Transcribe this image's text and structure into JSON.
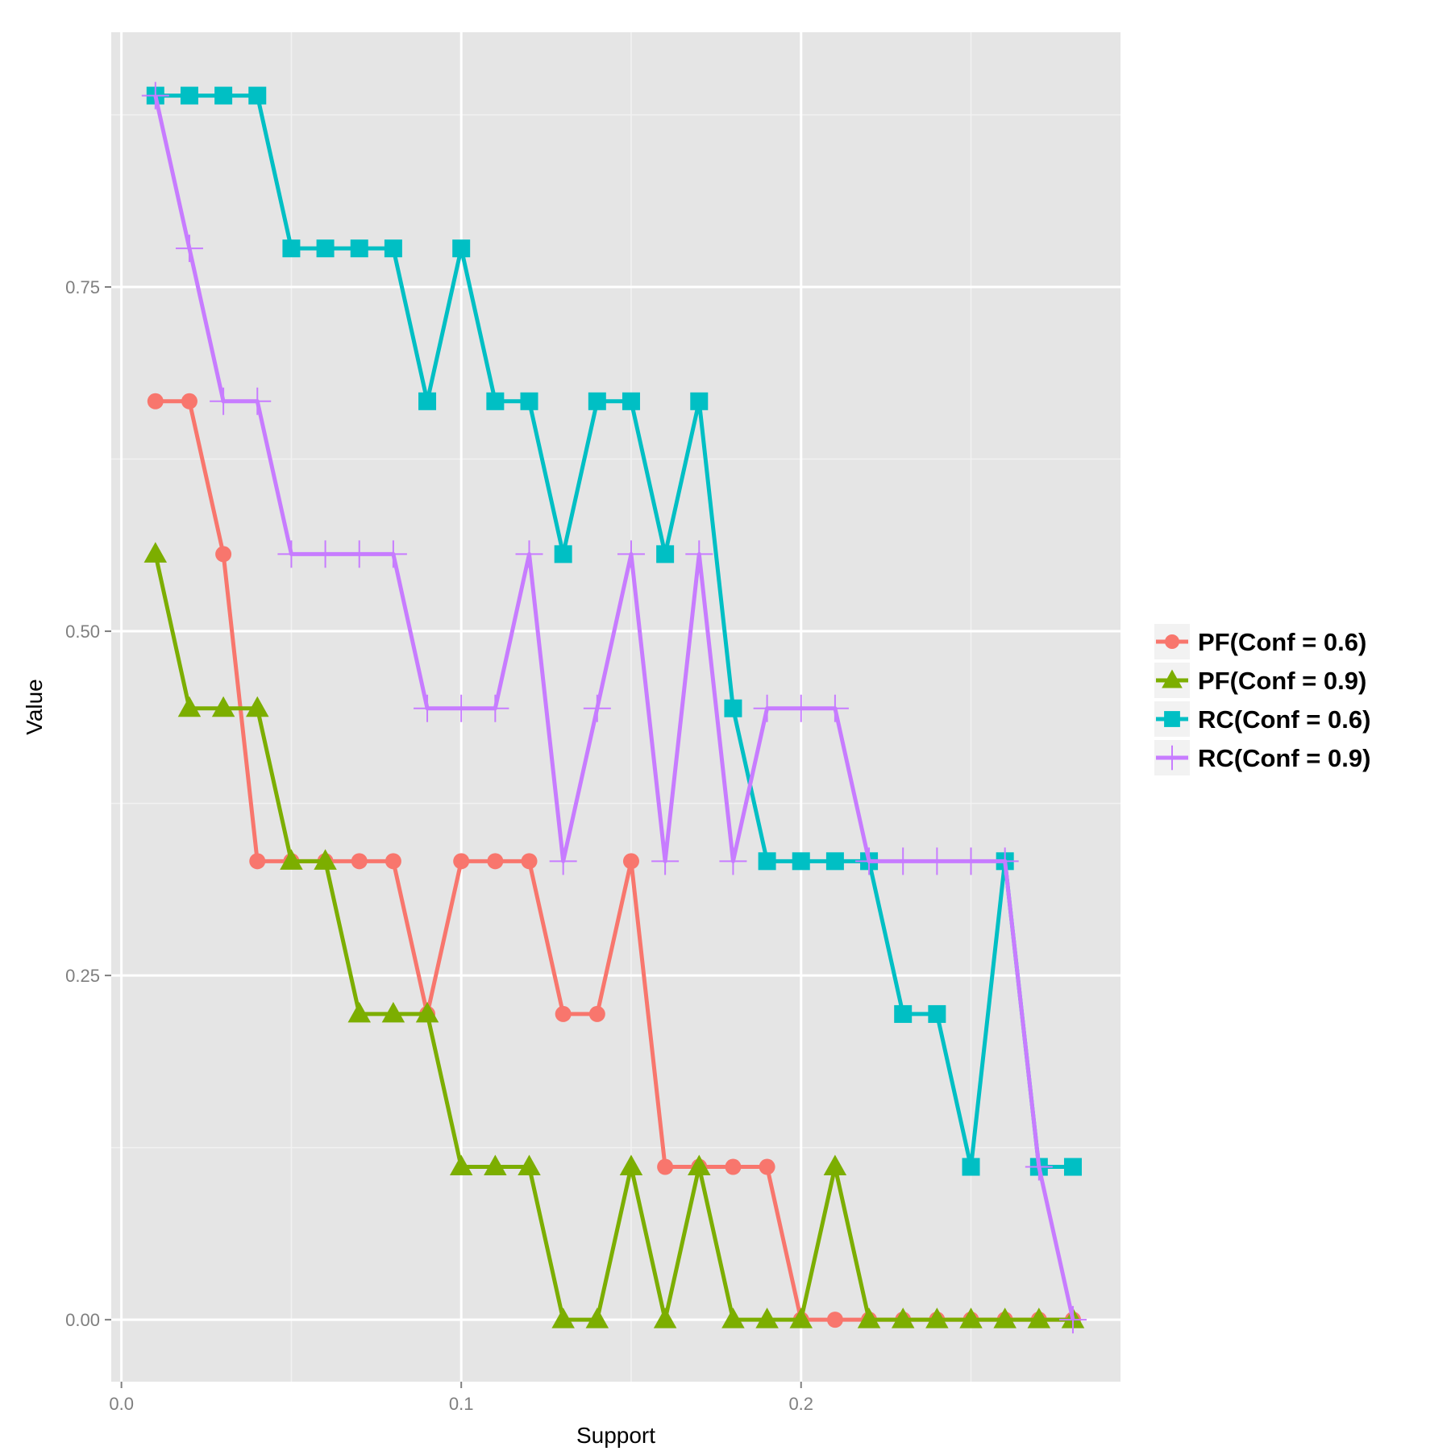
{
  "chart_data": {
    "type": "line",
    "xlabel": "Support",
    "ylabel": "Value",
    "xlim": [
      -0.003,
      0.294
    ],
    "ylim": [
      -0.045,
      0.935
    ],
    "x_ticks": [
      0.0,
      0.1,
      0.2
    ],
    "x_tick_labels": [
      "0.0",
      "0.1",
      "0.2"
    ],
    "y_ticks": [
      0.0,
      0.25,
      0.5,
      0.75
    ],
    "y_tick_labels": [
      "0.00",
      "0.25",
      "0.50",
      "0.75"
    ],
    "grid": true,
    "legend_position": "right",
    "x": [
      0.01,
      0.02,
      0.03,
      0.04,
      0.05,
      0.06,
      0.07,
      0.08,
      0.09,
      0.1,
      0.11,
      0.12,
      0.13,
      0.14,
      0.15,
      0.16,
      0.17,
      0.18,
      0.19,
      0.2,
      0.21,
      0.22,
      0.23,
      0.24,
      0.25,
      0.26,
      0.27,
      0.28
    ],
    "series": [
      {
        "name": "PF(Conf = 0.6)",
        "color": "#F8766D",
        "marker": "circle",
        "values": [
          0.667,
          0.667,
          0.556,
          0.333,
          0.333,
          0.333,
          0.333,
          0.333,
          0.222,
          0.333,
          0.333,
          0.333,
          0.222,
          0.222,
          0.333,
          0.111,
          0.111,
          0.111,
          0.111,
          0.0,
          0.0,
          0.0,
          0.0,
          0.0,
          0.0,
          0.0,
          0.0,
          0.0
        ]
      },
      {
        "name": "PF(Conf = 0.9)",
        "color": "#7CAE00",
        "marker": "triangle",
        "values": [
          0.556,
          0.444,
          0.444,
          0.444,
          0.333,
          0.333,
          0.222,
          0.222,
          0.222,
          0.111,
          0.111,
          0.111,
          0.0,
          0.0,
          0.111,
          0.0,
          0.111,
          0.0,
          0.0,
          0.0,
          0.111,
          0.0,
          0.0,
          0.0,
          0.0,
          0.0,
          0.0,
          0.0
        ]
      },
      {
        "name": "RC(Conf = 0.6)",
        "color": "#00BFC4",
        "marker": "square",
        "values": [
          0.889,
          0.889,
          0.889,
          0.889,
          0.778,
          0.778,
          0.778,
          0.778,
          0.667,
          0.778,
          0.667,
          0.667,
          0.556,
          0.667,
          0.667,
          0.556,
          0.667,
          0.444,
          0.333,
          0.333,
          0.333,
          0.333,
          0.222,
          0.222,
          0.111,
          0.333,
          0.111,
          0.111
        ]
      },
      {
        "name": "RC(Conf = 0.9)",
        "color": "#C77CFF",
        "marker": "plus",
        "values": [
          0.889,
          0.778,
          0.667,
          0.667,
          0.556,
          0.556,
          0.556,
          0.556,
          0.444,
          0.444,
          0.444,
          0.556,
          0.333,
          0.444,
          0.556,
          0.333,
          0.556,
          0.333,
          0.444,
          0.444,
          0.444,
          0.333,
          0.333,
          0.333,
          0.333,
          0.333,
          0.111,
          0.0
        ]
      }
    ]
  }
}
